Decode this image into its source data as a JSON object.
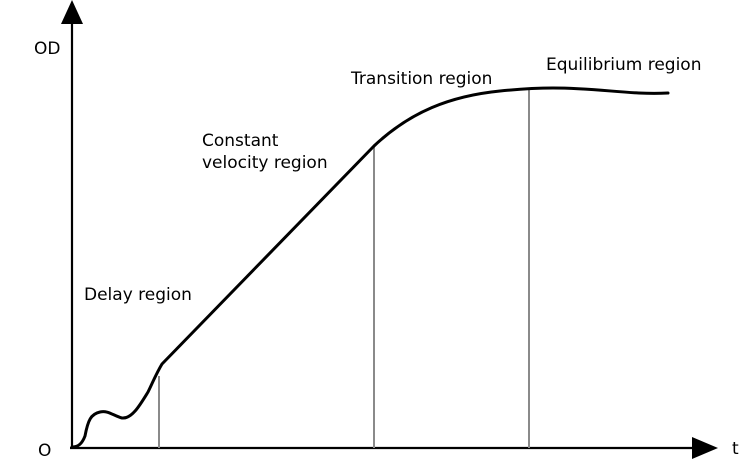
{
  "axes": {
    "y_label": "OD",
    "x_label": "t",
    "origin_label": "O"
  },
  "regions": {
    "delay": "Delay region",
    "constant_line1": "Constant",
    "constant_line2": "velocity region",
    "transition": "Transition region",
    "equilibrium": "Equilibrium region"
  },
  "colors": {
    "curve": "#000000",
    "axis": "#000000",
    "divider": "#8a8a8a"
  }
}
